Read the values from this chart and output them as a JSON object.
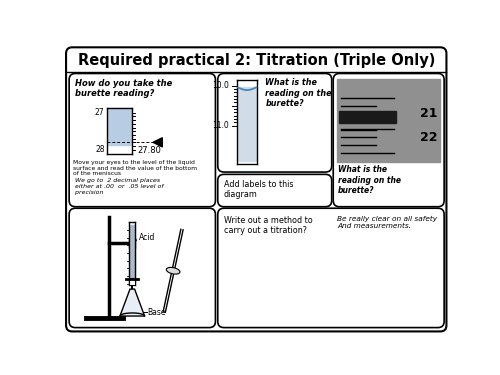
{
  "title": "Required practical 2: Titration (Triple Only)",
  "title_fontsize": 10.5,
  "background_color": "#ffffff",
  "border_color": "#000000",
  "panel_tl_question": "How do you take the\nburette reading?",
  "panel_tl_instruction1": "Move your eyes to the level of the liquid\nsurface and read the value of the bottom\nof the meniscus",
  "panel_tl_instruction2": " We go to  2 decimal places\n either at .00  or  .05 level of\n precision",
  "panel_tl_reading": "27.80",
  "panel_tl_label27": "27",
  "panel_tl_label28": "28",
  "panel_tm_scale_top": "10.0",
  "panel_tm_scale_bottom": "11.0",
  "panel_tm_question": "What is the\nreading on the\nburette?",
  "panel_tr_question": "What is the\nreading on the\nburette?",
  "panel_bml_text": "Add labels to this\ndiagram",
  "panel_bl_acid": "Acid",
  "panel_bl_base": "Base",
  "panel_br_q": "Write out a method to\ncarry out a titration?",
  "panel_br_note": "Be really clear on all safety\nAnd measurements.",
  "liquid_color": "#b8cce4",
  "liquid_color2": "#c5d5e5",
  "photo_bg": "#909090",
  "photo_dark": "#1a1a1a"
}
